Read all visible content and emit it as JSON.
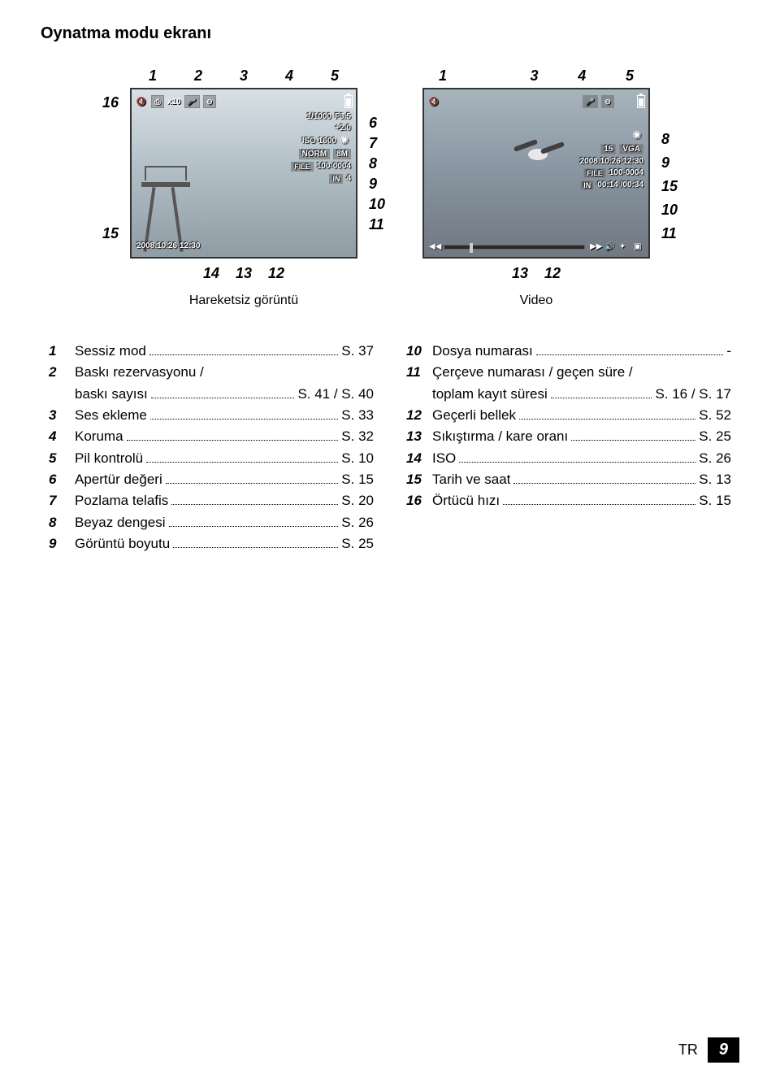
{
  "title": "Oynatma modu ekranı",
  "still": {
    "caption": "Hareketsiz görüntü",
    "top_callouts": [
      "1",
      "2",
      "3",
      "4",
      "5"
    ],
    "left_callouts": [
      "16",
      "15"
    ],
    "right_callouts": [
      "6",
      "7",
      "8",
      "9",
      "10",
      "11"
    ],
    "bottom_callouts": [
      "14",
      "13",
      "12"
    ],
    "topbar": {
      "mute": "🔇",
      "print": "⎙",
      "x10": "x10",
      "voice": "🎤",
      "lock": "⊖"
    },
    "right_info": {
      "shutter": "1/1000",
      "aperture": "F3.5",
      "exp": "+2.0",
      "iso": "ISO 1600",
      "quality": "NORM",
      "size": "8M",
      "file_tag": "FILE",
      "file": "100-0004",
      "mem": "IN",
      "frame": "4"
    },
    "bottom_left": "2008.10.26 12:30"
  },
  "video": {
    "caption": "Video",
    "top_callouts": [
      "1",
      "3",
      "4",
      "5"
    ],
    "right_callouts": [
      "8",
      "9",
      "15",
      "10",
      "11"
    ],
    "bottom_callouts": [
      "13",
      "12"
    ],
    "topbar": {
      "mute": "🔇",
      "voice": "🎤",
      "lock": "⊖"
    },
    "right_info": {
      "fps": "15",
      "res": "VGA",
      "datetime": "2008.10.26  12:30",
      "file_tag": "FILE",
      "file": "100-0004",
      "mem": "IN",
      "time": "00:14 /00:34"
    },
    "scrubber_icons": {
      "rew": "◀◀",
      "fwd": "▶▶",
      "vol": "🔊",
      "flash": "✦",
      "stop": "▣"
    }
  },
  "legend_left": [
    {
      "n": "1",
      "label": "Sessiz mod",
      "page": "S. 37"
    },
    {
      "n": "2",
      "label": "Baskı rezervasyonu /",
      "cont": "baskı sayısı",
      "page": "S. 41 / S. 40"
    },
    {
      "n": "3",
      "label": "Ses ekleme",
      "page": "S. 33"
    },
    {
      "n": "4",
      "label": "Koruma",
      "page": "S. 32"
    },
    {
      "n": "5",
      "label": "Pil kontrolü",
      "page": "S. 10"
    },
    {
      "n": "6",
      "label": "Apertür değeri",
      "page": "S. 15"
    },
    {
      "n": "7",
      "label": "Pozlama telafis",
      "page": "S. 20"
    },
    {
      "n": "8",
      "label": "Beyaz dengesi",
      "page": "S. 26"
    },
    {
      "n": "9",
      "label": "Görüntü boyutu",
      "page": "S. 25"
    }
  ],
  "legend_right": [
    {
      "n": "10",
      "label": "Dosya numarası",
      "page": " -"
    },
    {
      "n": "11",
      "label": "Çerçeve numarası / geçen süre /",
      "cont": "toplam kayıt süresi",
      "page": "S. 16 / S. 17"
    },
    {
      "n": "12",
      "label": "Geçerli bellek",
      "page": "S. 52"
    },
    {
      "n": "13",
      "label": "Sıkıştırma / kare oranı",
      "page": "S. 25"
    },
    {
      "n": "14",
      "label": "ISO",
      "page": "S. 26"
    },
    {
      "n": "15",
      "label": "Tarih ve saat",
      "page": "S. 13"
    },
    {
      "n": "16",
      "label": "Örtücü hızı",
      "page": "S. 15"
    }
  ],
  "footer": {
    "lang": "TR",
    "page": "9"
  },
  "colors": {
    "text": "#000000",
    "bg": "#ffffff",
    "lcd_sky_top": "#d8e0e4",
    "lcd_sky_mid": "#b8c4cc",
    "lcd_sky_bot": "#909ca4",
    "lcd_txt": "#ffffff",
    "footer_box": "#000000"
  },
  "fonts": {
    "title_size_pt": 15,
    "body_size_pt": 13,
    "callout_size_pt": 14
  }
}
